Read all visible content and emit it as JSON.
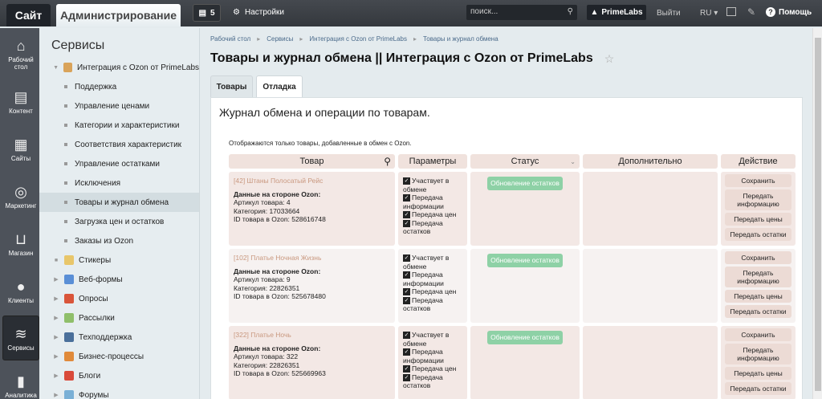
{
  "topbar": {
    "site": "Сайт",
    "admin": "Администрирование",
    "notifications": "5",
    "settings": "Настройки",
    "search_placeholder": "поиск...",
    "user": "PrimeLabs",
    "logout": "Выйти",
    "lang": "RU",
    "help": "Помощь"
  },
  "leftnav": [
    {
      "label": "Рабочий стол",
      "icon": "home-icon"
    },
    {
      "label": "Контент",
      "icon": "document-icon"
    },
    {
      "label": "Сайты",
      "icon": "calendar-icon"
    },
    {
      "label": "Маркетинг",
      "icon": "target-icon"
    },
    {
      "label": "Магазин",
      "icon": "basket-icon"
    },
    {
      "label": "Клиенты",
      "icon": "clients-icon"
    },
    {
      "label": "Сервисы",
      "icon": "layers-icon",
      "active": true
    },
    {
      "label": "Аналитика",
      "icon": "chart-icon"
    }
  ],
  "sidebar": {
    "title": "Сервисы",
    "items": [
      {
        "label": "Интеграция с Ozon от PrimeLabs",
        "type": "expanded",
        "color": "#d9a35a"
      },
      {
        "label": "Поддержка",
        "type": "sub"
      },
      {
        "label": "Управление ценами",
        "type": "sub"
      },
      {
        "label": "Категории и характеристики",
        "type": "sub"
      },
      {
        "label": "Соответствия характеристик",
        "type": "sub"
      },
      {
        "label": "Управление остатками",
        "type": "sub"
      },
      {
        "label": "Исключения",
        "type": "sub"
      },
      {
        "label": "Товары и журнал обмена",
        "type": "sub",
        "active": true
      },
      {
        "label": "Загрузка цен и остатков",
        "type": "sub"
      },
      {
        "label": "Заказы из Ozon",
        "type": "sub"
      },
      {
        "label": "Стикеры",
        "type": "leaf",
        "color": "#e8c66a"
      },
      {
        "label": "Веб-формы",
        "type": "collapsed",
        "color": "#5a8fd6"
      },
      {
        "label": "Опросы",
        "type": "collapsed",
        "color": "#d9553a"
      },
      {
        "label": "Рассылки",
        "type": "collapsed",
        "color": "#8fbf6a"
      },
      {
        "label": "Техподдержка",
        "type": "collapsed",
        "color": "#4a6f9a"
      },
      {
        "label": "Бизнес-процессы",
        "type": "collapsed",
        "color": "#e08a3a"
      },
      {
        "label": "Блоги",
        "type": "collapsed",
        "color": "#d94a3a"
      },
      {
        "label": "Форумы",
        "type": "collapsed",
        "color": "#7ab0d6"
      }
    ]
  },
  "breadcrumbs": [
    "Рабочий стол",
    "Сервисы",
    "Интеграция с Ozon от PrimeLabs",
    "Товары и журнал обмена"
  ],
  "page_title": "Товары и журнал обмена || Интеграция с Ozon от PrimeLabs",
  "tabs": [
    "Товары",
    "Отладка"
  ],
  "panel": {
    "heading": "Журнал обмена и операции по товарам.",
    "note": "Отображаются только товары, добавленные в обмен с Ozon."
  },
  "table": {
    "headers": [
      "Товар",
      "Параметры",
      "Статус",
      "Дополнительно",
      "Действие"
    ],
    "rows": [
      {
        "name": "[42] Штаны Полосатый Рейс",
        "ozon_title": "Данные на стороне Ozon:",
        "article": "Артикул товара: 4",
        "category": "Категория: 17033664",
        "ozon_id": "ID товара в Ozon: 528616748",
        "status": "Обновление остатков"
      },
      {
        "name": "[102] Платье Ночная Жизнь",
        "ozon_title": "Данные на стороне Ozon:",
        "article": "Артикул товара: 9",
        "category": "Категория: 22826351",
        "ozon_id": "ID товара в Ozon: 525678480",
        "status": "Обновление остатков"
      },
      {
        "name": "[322] Платье Ночь",
        "ozon_title": "Данные на стороне Ozon:",
        "article": "Артикул товара: 322",
        "category": "Категория: 22826351",
        "ozon_id": "ID товара в Ozon: 525669963",
        "status": "Обновление остатков"
      }
    ],
    "params": [
      "Участвует в обмене",
      "Передача информации",
      "Передача цен",
      "Передача остатков"
    ],
    "actions": [
      "Сохранить",
      "Передать информацию",
      "Передать цены",
      "Передать остатки"
    ]
  }
}
